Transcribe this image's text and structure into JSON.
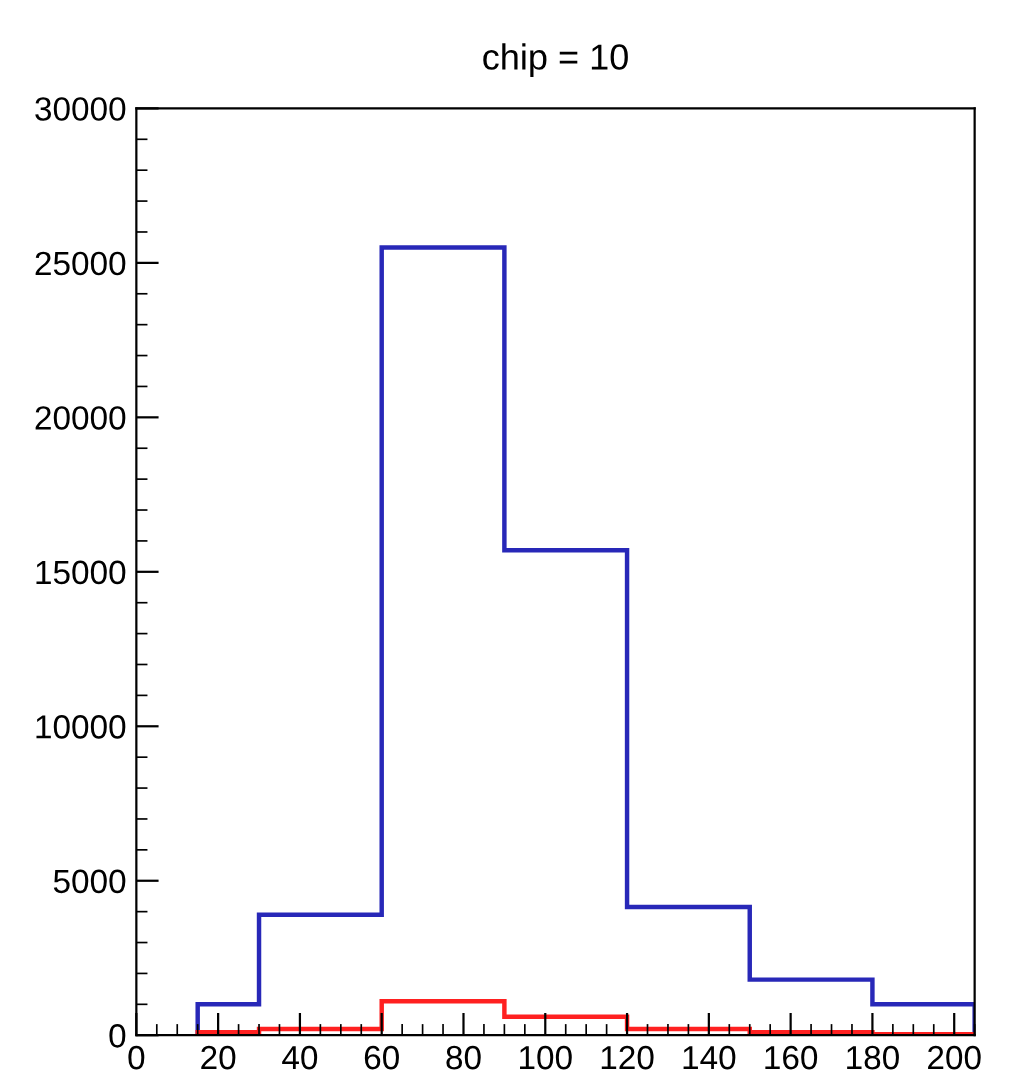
{
  "chart_data": {
    "type": "histogram",
    "title": "chip = 10",
    "bins": [
      15,
      30,
      60,
      90,
      120,
      150,
      180,
      205
    ],
    "series": [
      {
        "color": "#2828b8",
        "values": [
          1000,
          3900,
          25500,
          15700,
          4150,
          1800,
          1000
        ]
      },
      {
        "color": "#ff2020",
        "values": [
          100,
          200,
          1100,
          600,
          200,
          100,
          30
        ]
      }
    ],
    "xlim": [
      0,
      205
    ],
    "xticks": [
      0,
      20,
      40,
      60,
      80,
      100,
      120,
      140,
      160,
      180,
      200
    ],
    "ylim": [
      0,
      30000
    ],
    "yticks": [
      0,
      5000,
      10000,
      15000,
      20000,
      25000,
      30000
    ],
    "grid": false,
    "legend": false
  }
}
